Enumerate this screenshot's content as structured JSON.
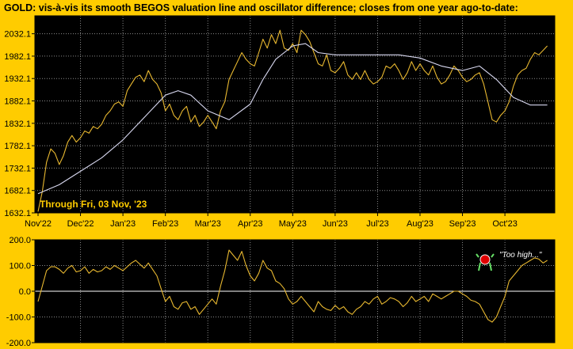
{
  "title": "GOLD:  vis-à-vis its smooth BEGOS valuation line and oscillator difference; closes from one year ago-to-date:",
  "colors": {
    "background": "#FFCC00",
    "plot_bg": "#000000",
    "grid": "#8A8A8A",
    "price_line": "#E8B830",
    "valuation_line": "#D8D8F0",
    "axis_text": "#000000",
    "annotation_text": "#FFCC00",
    "smiley_face": "#E00000",
    "smiley_limbs": "#66E066"
  },
  "chart_data": [
    {
      "type": "line",
      "name": "price_panel",
      "xlabel": "",
      "ylabel": "",
      "ylim": [
        1632.1,
        2072.1
      ],
      "yticks": [
        "2032.1",
        "1982.1",
        "1932.1",
        "1882.1",
        "1832.1",
        "1782.1",
        "1732.1",
        "1682.1",
        "1632.1"
      ],
      "ytick_values": [
        2032.1,
        1982.1,
        1932.1,
        1882.1,
        1832.1,
        1782.1,
        1732.1,
        1682.1,
        1632.1
      ],
      "xlim": [
        0,
        12.1
      ],
      "categories": [
        "Nov'22",
        "Dec'22",
        "Jan'23",
        "Feb'23",
        "Mar'23",
        "Apr'23",
        "May'23",
        "Jun'23",
        "Jul'23",
        "Aug'23",
        "Sep'23",
        "Oct'23"
      ],
      "annotation": "Through Fri, 03 Nov, '23",
      "series": [
        {
          "name": "GOLD close",
          "x": [
            0,
            0.1,
            0.2,
            0.3,
            0.4,
            0.5,
            0.6,
            0.7,
            0.8,
            0.9,
            1.0,
            1.1,
            1.2,
            1.3,
            1.4,
            1.5,
            1.6,
            1.7,
            1.8,
            1.9,
            2.0,
            2.1,
            2.2,
            2.3,
            2.4,
            2.5,
            2.6,
            2.7,
            2.8,
            2.9,
            3.0,
            3.1,
            3.2,
            3.3,
            3.4,
            3.5,
            3.6,
            3.7,
            3.8,
            3.9,
            4.0,
            4.1,
            4.2,
            4.3,
            4.4,
            4.5,
            4.6,
            4.7,
            4.8,
            4.9,
            5.0,
            5.1,
            5.2,
            5.3,
            5.4,
            5.5,
            5.6,
            5.7,
            5.8,
            5.9,
            6.0,
            6.1,
            6.2,
            6.3,
            6.4,
            6.5,
            6.6,
            6.7,
            6.8,
            6.9,
            7.0,
            7.1,
            7.2,
            7.3,
            7.4,
            7.5,
            7.6,
            7.7,
            7.8,
            7.9,
            8.0,
            8.1,
            8.2,
            8.3,
            8.4,
            8.5,
            8.6,
            8.7,
            8.8,
            8.9,
            9.0,
            9.1,
            9.2,
            9.3,
            9.4,
            9.5,
            9.6,
            9.7,
            9.8,
            9.9,
            10.0,
            10.1,
            10.2,
            10.3,
            10.4,
            10.5,
            10.6,
            10.7,
            10.8,
            10.9,
            11.0,
            11.1,
            11.2,
            11.3,
            11.4,
            11.5,
            11.6,
            11.7,
            11.8,
            11.9,
            12.0
          ],
          "values": [
            1635,
            1680,
            1745,
            1775,
            1765,
            1740,
            1760,
            1790,
            1805,
            1790,
            1800,
            1815,
            1810,
            1825,
            1820,
            1830,
            1850,
            1860,
            1875,
            1880,
            1870,
            1905,
            1920,
            1935,
            1940,
            1925,
            1950,
            1930,
            1920,
            1900,
            1860,
            1875,
            1850,
            1840,
            1860,
            1870,
            1835,
            1850,
            1825,
            1835,
            1850,
            1835,
            1820,
            1860,
            1880,
            1930,
            1950,
            1970,
            1990,
            1975,
            1965,
            1960,
            1990,
            2020,
            2000,
            2030,
            2010,
            2040,
            2000,
            1995,
            2010,
            1990,
            2040,
            2030,
            2015,
            1990,
            1965,
            1960,
            1985,
            1950,
            1945,
            1955,
            1970,
            1940,
            1930,
            1945,
            1930,
            1950,
            1930,
            1920,
            1925,
            1935,
            1960,
            1955,
            1965,
            1950,
            1930,
            1945,
            1970,
            1950,
            1965,
            1950,
            1940,
            1960,
            1935,
            1920,
            1925,
            1940,
            1960,
            1950,
            1935,
            1925,
            1930,
            1940,
            1945,
            1920,
            1880,
            1840,
            1835,
            1850,
            1860,
            1880,
            1915,
            1940,
            1950,
            1955,
            1975,
            1990,
            1985,
            1995,
            2005
          ],
          "color": "#E8B830"
        },
        {
          "name": "BEGOS valuation",
          "x": [
            0,
            0.5,
            1.0,
            1.5,
            2.0,
            2.5,
            3.0,
            3.3,
            3.6,
            4.0,
            4.5,
            5.0,
            5.3,
            5.6,
            6.0,
            6.3,
            6.6,
            7.0,
            7.5,
            8.0,
            8.5,
            9.0,
            9.5,
            10.0,
            10.4,
            10.8,
            11.2,
            11.6,
            12.0
          ],
          "values": [
            1675,
            1695,
            1725,
            1755,
            1795,
            1845,
            1895,
            1905,
            1895,
            1860,
            1840,
            1875,
            1930,
            1975,
            2005,
            2010,
            1990,
            1985,
            1985,
            1985,
            1985,
            1978,
            1960,
            1950,
            1960,
            1930,
            1890,
            1873,
            1873
          ],
          "color": "#D8D8F0"
        }
      ]
    },
    {
      "type": "line",
      "name": "oscillator_panel",
      "xlabel": "",
      "ylabel": "",
      "ylim": [
        -200.0,
        200.0
      ],
      "yticks": [
        "200.0",
        "100.0",
        "0.0",
        "-100.0",
        "-200.0"
      ],
      "ytick_values": [
        200.0,
        100.0,
        0.0,
        -100.0,
        -200.0
      ],
      "xlim": [
        0,
        12.1
      ],
      "annotation": "\"Too high...\"",
      "series": [
        {
          "name": "oscillator difference",
          "x": [
            0,
            0.1,
            0.2,
            0.3,
            0.4,
            0.5,
            0.6,
            0.7,
            0.8,
            0.9,
            1.0,
            1.1,
            1.2,
            1.3,
            1.4,
            1.5,
            1.6,
            1.7,
            1.8,
            1.9,
            2.0,
            2.1,
            2.2,
            2.3,
            2.4,
            2.5,
            2.6,
            2.7,
            2.8,
            2.9,
            3.0,
            3.1,
            3.2,
            3.3,
            3.4,
            3.5,
            3.6,
            3.7,
            3.8,
            3.9,
            4.0,
            4.1,
            4.2,
            4.3,
            4.4,
            4.5,
            4.6,
            4.7,
            4.8,
            4.9,
            5.0,
            5.1,
            5.2,
            5.3,
            5.4,
            5.5,
            5.6,
            5.7,
            5.8,
            5.9,
            6.0,
            6.1,
            6.2,
            6.3,
            6.4,
            6.5,
            6.6,
            6.7,
            6.8,
            6.9,
            7.0,
            7.1,
            7.2,
            7.3,
            7.4,
            7.5,
            7.6,
            7.7,
            7.8,
            7.9,
            8.0,
            8.1,
            8.2,
            8.3,
            8.4,
            8.5,
            8.6,
            8.7,
            8.8,
            8.9,
            9.0,
            9.1,
            9.2,
            9.3,
            9.4,
            9.5,
            9.6,
            9.7,
            9.8,
            9.9,
            10.0,
            10.1,
            10.2,
            10.3,
            10.4,
            10.5,
            10.6,
            10.7,
            10.8,
            10.9,
            11.0,
            11.1,
            11.2,
            11.3,
            11.4,
            11.5,
            11.6,
            11.7,
            11.8,
            11.9,
            12.0
          ],
          "values": [
            -40,
            20,
            80,
            95,
            95,
            85,
            70,
            90,
            100,
            75,
            80,
            95,
            70,
            85,
            75,
            80,
            95,
            85,
            100,
            90,
            80,
            95,
            110,
            120,
            105,
            90,
            110,
            85,
            60,
            10,
            -40,
            -20,
            -60,
            -70,
            -45,
            -40,
            -70,
            -60,
            -90,
            -70,
            -50,
            -30,
            -50,
            20,
            80,
            160,
            140,
            120,
            155,
            100,
            60,
            40,
            70,
            120,
            90,
            80,
            40,
            30,
            10,
            -30,
            -50,
            -40,
            -20,
            -40,
            -60,
            -80,
            -40,
            -60,
            -70,
            -75,
            -55,
            -70,
            -60,
            -80,
            -90,
            -70,
            -60,
            -40,
            -50,
            -30,
            -20,
            -50,
            -40,
            -25,
            -30,
            -40,
            -60,
            -45,
            -20,
            -40,
            -30,
            -20,
            -40,
            -10,
            -20,
            -30,
            -20,
            -10,
            0,
            0,
            -10,
            -20,
            -35,
            -40,
            -50,
            -80,
            -110,
            -120,
            -100,
            -60,
            -20,
            40,
            60,
            80,
            100,
            110,
            120,
            130,
            125,
            110,
            120
          ],
          "color": "#E8B830"
        }
      ]
    }
  ]
}
